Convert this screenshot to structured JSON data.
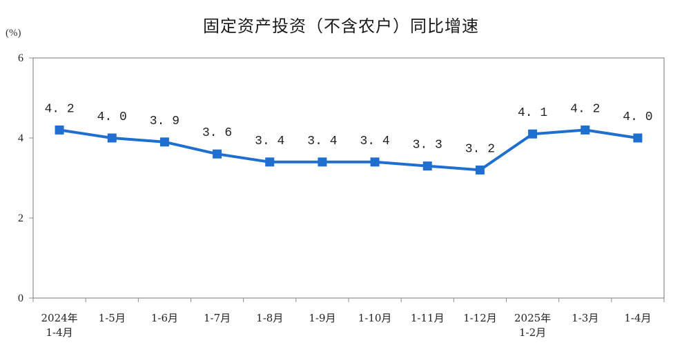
{
  "chart_data": {
    "type": "line",
    "title": "固定资产投资（不含农户）同比增速",
    "unit": "(%)",
    "categories": [
      [
        "2024年",
        "1-4月"
      ],
      [
        "1-5月"
      ],
      [
        "1-6月"
      ],
      [
        "1-7月"
      ],
      [
        "1-8月"
      ],
      [
        "1-9月"
      ],
      [
        "1-10月"
      ],
      [
        "1-11月"
      ],
      [
        "1-12月"
      ],
      [
        "2025年",
        "1-2月"
      ],
      [
        "1-3月"
      ],
      [
        "1-4月"
      ]
    ],
    "series": [
      {
        "values": [
          4.2,
          4.0,
          3.9,
          3.6,
          3.4,
          3.4,
          3.4,
          3.3,
          3.2,
          4.1,
          4.2,
          4.0
        ],
        "labels": [
          "4. 2",
          "4. 0",
          "3. 9",
          "3. 6",
          "3. 4",
          "3. 4",
          "3. 4",
          "3. 3",
          "3. 2",
          "4. 1",
          "4. 2",
          "4. 0"
        ],
        "color": "#1f6fd1"
      }
    ],
    "ylim": [
      0,
      6
    ],
    "yticks": [
      0,
      2,
      4,
      6
    ],
    "grid": false,
    "legend": "none",
    "axis_color": "#8c8c8c"
  }
}
